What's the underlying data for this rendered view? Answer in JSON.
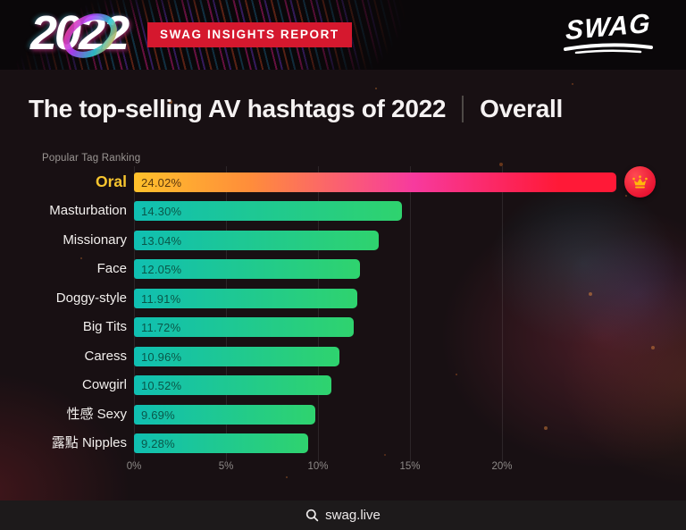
{
  "banner": {
    "year": "2022",
    "badge_label": "SWAG INSIGHTS REPORT",
    "logo_text": "SWAG"
  },
  "title": {
    "main": "The top-selling AV hashtags of 2022",
    "divider": "|",
    "scope": "Overall"
  },
  "chart_data": {
    "type": "bar",
    "orientation": "horizontal",
    "title": "The top-selling AV hashtags of 2022 | Overall",
    "subtitle": "Popular Tag Ranking",
    "categories": [
      "Oral",
      "Masturbation",
      "Missionary",
      "Face",
      "Doggy-style",
      "Big Tits",
      "Caress",
      "Cowgirl",
      "性感 Sexy",
      "露點 Nipples"
    ],
    "values": [
      24.02,
      14.3,
      13.04,
      12.05,
      11.91,
      11.72,
      10.96,
      10.52,
      9.69,
      9.28
    ],
    "value_labels": [
      "24.02%",
      "14.30%",
      "13.04%",
      "12.05%",
      "11.91%",
      "11.72%",
      "10.96%",
      "10.52%",
      "9.69%",
      "9.28%"
    ],
    "highlight_index": 0,
    "highlight_badge": "crown-icon",
    "x_ticks": {
      "labels": [
        "0%",
        "5%",
        "10%",
        "15%",
        "20%"
      ],
      "values": [
        0,
        5,
        10,
        15,
        20
      ]
    },
    "xlim": [
      0,
      26
    ],
    "grid": "vertical",
    "legend": "none",
    "colors": {
      "highlight_bar_gradient": [
        "#FFC12B",
        "#FF8D3A",
        "#F73A9E",
        "#FF1937"
      ],
      "bar_gradient": [
        "#10BFB2",
        "#2FD36E"
      ],
      "highlight_label": "#F7C52F",
      "label": "#F2EFED",
      "axis_label": "#8E8A88",
      "badge_red": "#D5182E",
      "crown_gold": "#FFB80A"
    }
  },
  "footer": {
    "icon": "search-icon",
    "text": "swag.live"
  }
}
